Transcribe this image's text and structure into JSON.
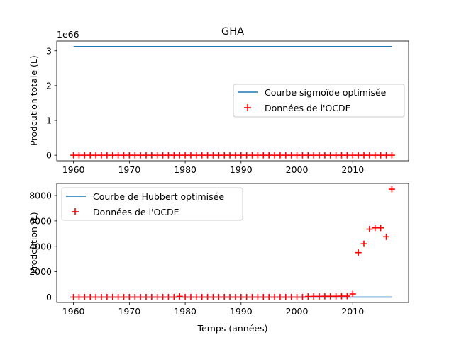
{
  "figure": {
    "title": "GHA",
    "xlabel": "Temps (années)",
    "colors": {
      "fit_line": "#1f77b4",
      "marker": "#ff0000"
    }
  },
  "chart_data": [
    {
      "type": "line",
      "ylabel": "Prodcution totale (L)",
      "offset_text": "1e66",
      "xlim": [
        1957,
        2020
      ],
      "ylim": [
        -0.16,
        3.28
      ],
      "xticks": [
        1960,
        1970,
        1980,
        1990,
        2000,
        2010
      ],
      "xtick_labels": [
        "1960",
        "1970",
        "1980",
        "1990",
        "2000",
        "2010"
      ],
      "yticks": [
        0,
        1,
        2,
        3
      ],
      "ytick_labels": [
        "0",
        "1",
        "2",
        "3"
      ],
      "grid": false,
      "legend_position": "center-right",
      "series": [
        {
          "name": "Courbe sigmoïde optimisée",
          "kind": "line",
          "x": [
            1960,
            2017
          ],
          "y": [
            3.12,
            3.12
          ]
        },
        {
          "name": "Données de l'OCDE",
          "kind": "scatter",
          "marker": "+",
          "x": [
            1960,
            1961,
            1962,
            1963,
            1964,
            1965,
            1966,
            1967,
            1968,
            1969,
            1970,
            1971,
            1972,
            1973,
            1974,
            1975,
            1976,
            1977,
            1978,
            1979,
            1980,
            1981,
            1982,
            1983,
            1984,
            1985,
            1986,
            1987,
            1988,
            1989,
            1990,
            1991,
            1992,
            1993,
            1994,
            1995,
            1996,
            1997,
            1998,
            1999,
            2000,
            2001,
            2002,
            2003,
            2004,
            2005,
            2006,
            2007,
            2008,
            2009,
            2010,
            2011,
            2012,
            2013,
            2014,
            2015,
            2016,
            2017
          ],
          "y": [
            0,
            0,
            0,
            0,
            0,
            0,
            0,
            0,
            0,
            0,
            0,
            0,
            0,
            0,
            0,
            0,
            0,
            0,
            0,
            0,
            0,
            0,
            0,
            0,
            0,
            0,
            0,
            0,
            0,
            0,
            0,
            0,
            0,
            0,
            0,
            0,
            0,
            0,
            0,
            0,
            0,
            0,
            0,
            0,
            0,
            0,
            0,
            0,
            0,
            0,
            0,
            0,
            0,
            0,
            0,
            0,
            0,
            0
          ]
        }
      ]
    },
    {
      "type": "line",
      "ylabel": "Prodcution (L)",
      "xlim": [
        1957,
        2020
      ],
      "ylim": [
        -420,
        8950
      ],
      "xticks": [
        1960,
        1970,
        1980,
        1990,
        2000,
        2010
      ],
      "xtick_labels": [
        "1960",
        "1970",
        "1980",
        "1990",
        "2000",
        "2010"
      ],
      "yticks": [
        0,
        2000,
        4000,
        6000,
        8000
      ],
      "ytick_labels": [
        "0",
        "2000",
        "4000",
        "6000",
        "8000"
      ],
      "grid": false,
      "legend_position": "top-left",
      "series": [
        {
          "name": "Courbe de Hubbert optimisée",
          "kind": "line",
          "x": [
            1960,
            2017
          ],
          "y": [
            0,
            0
          ]
        },
        {
          "name": "Données de l'OCDE",
          "kind": "scatter",
          "marker": "+",
          "x": [
            1960,
            1961,
            1962,
            1963,
            1964,
            1965,
            1966,
            1967,
            1968,
            1969,
            1970,
            1971,
            1972,
            1973,
            1974,
            1975,
            1976,
            1977,
            1978,
            1979,
            1980,
            1981,
            1982,
            1983,
            1984,
            1985,
            1986,
            1987,
            1988,
            1989,
            1990,
            1991,
            1992,
            1993,
            1994,
            1995,
            1996,
            1997,
            1998,
            1999,
            2000,
            2001,
            2002,
            2003,
            2004,
            2005,
            2006,
            2007,
            2008,
            2009,
            2010,
            2011,
            2012,
            2013,
            2014,
            2015,
            2016,
            2017
          ],
          "y": [
            0,
            0,
            0,
            0,
            0,
            0,
            0,
            0,
            0,
            0,
            0,
            0,
            0,
            0,
            0,
            0,
            0,
            0,
            0,
            60,
            0,
            0,
            0,
            0,
            0,
            0,
            0,
            0,
            0,
            0,
            0,
            0,
            0,
            0,
            0,
            0,
            0,
            0,
            0,
            0,
            0,
            0,
            50,
            60,
            60,
            70,
            70,
            70,
            80,
            80,
            250,
            3500,
            4200,
            5350,
            5450,
            5450,
            4750,
            8500
          ]
        }
      ]
    }
  ]
}
